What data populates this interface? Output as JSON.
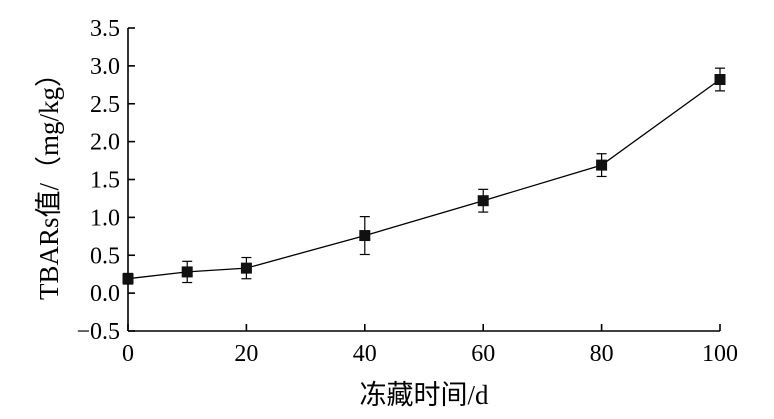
{
  "chart_data": {
    "type": "line",
    "title": "",
    "xlabel": "冻藏时间/d",
    "ylabel": "TBARs值/（mg/kg）",
    "xlim": [
      0,
      100
    ],
    "ylim": [
      -0.5,
      3.5
    ],
    "xticks": [
      "0",
      "20",
      "40",
      "60",
      "80",
      "100"
    ],
    "yticks": [
      "−0.5",
      "0.0",
      "0.5",
      "1.0",
      "1.5",
      "2.0",
      "2.5",
      "3.0",
      "3.5"
    ],
    "grid": false,
    "legend": "none",
    "series": [
      {
        "marker": "filled-square",
        "x": [
          0,
          10,
          20,
          40,
          60,
          80,
          100
        ],
        "values": [
          0.19,
          0.28,
          0.33,
          0.76,
          1.22,
          1.69,
          2.82
        ],
        "error": [
          0.07,
          0.14,
          0.14,
          0.25,
          0.15,
          0.15,
          0.15
        ]
      }
    ]
  }
}
